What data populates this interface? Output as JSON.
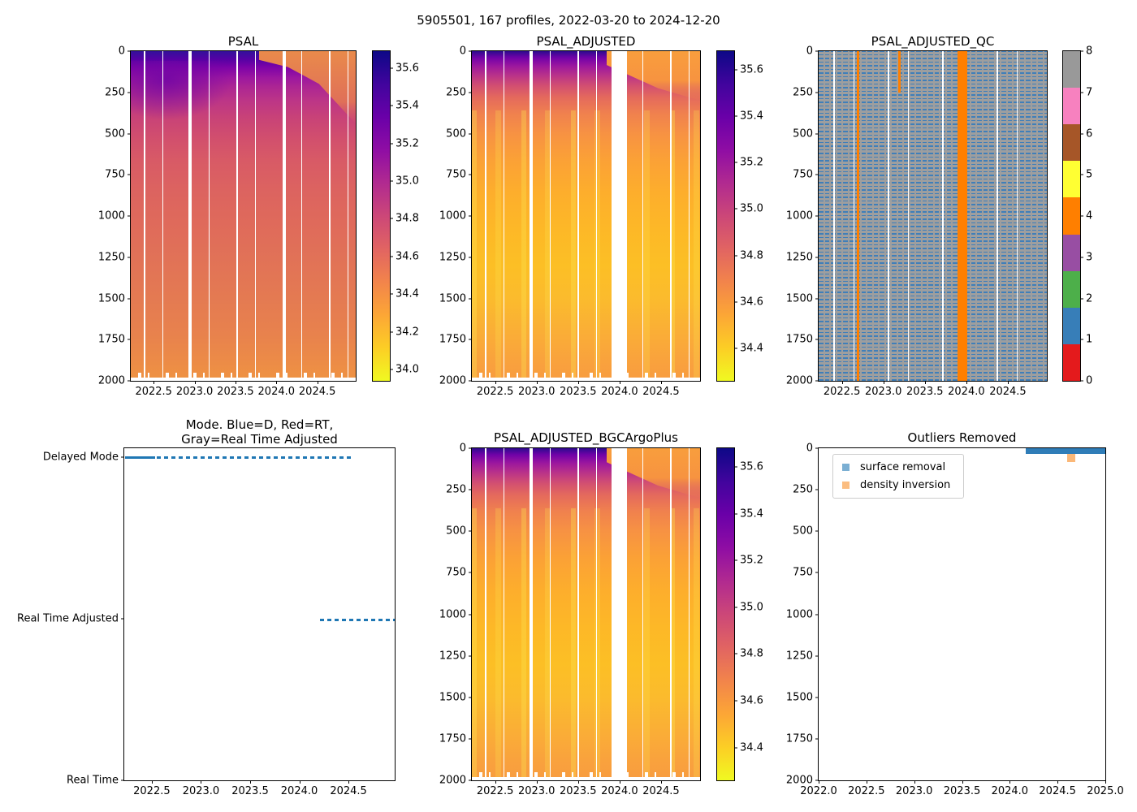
{
  "figure": {
    "suptitle": "5905501, 167 profiles, 2022-03-20 to 2024-12-20",
    "float_id": "5905501",
    "n_profiles": 167,
    "date_range": "2022-03-20 to 2024-12-20"
  },
  "colors": {
    "line_blue": "#1f77b4",
    "qc_flag_orange": "#ff7f00",
    "qc_flag_blue": "#377eb8",
    "qc_flag_gray": "#999999",
    "outlier_band_blue": "#2f7db8",
    "outlier_orange": "#fbb878"
  },
  "axes": {
    "depth": {
      "min": 0,
      "max": 2000,
      "dir": "down",
      "ticks": [
        {
          "v": 0,
          "label": "0"
        },
        {
          "v": 250,
          "label": "250"
        },
        {
          "v": 500,
          "label": "500"
        },
        {
          "v": 750,
          "label": "750"
        },
        {
          "v": 1000,
          "label": "1000"
        },
        {
          "v": 1250,
          "label": "1250"
        },
        {
          "v": 1500,
          "label": "1500"
        },
        {
          "v": 1750,
          "label": "1750"
        },
        {
          "v": 2000,
          "label": "2000"
        }
      ]
    },
    "time_a": {
      "min": 2022.22,
      "max": 2024.97,
      "ticks": [
        {
          "v": 2022.5,
          "label": "2022.5"
        },
        {
          "v": 2023.0,
          "label": "2023.0"
        },
        {
          "v": 2023.5,
          "label": "2023.5"
        },
        {
          "v": 2024.0,
          "label": "2024.0"
        },
        {
          "v": 2024.5,
          "label": "2024.5"
        }
      ]
    },
    "time_b": {
      "min": 2022.0,
      "max": 2025.0,
      "ticks": [
        {
          "v": 2022.0,
          "label": "2022.0"
        },
        {
          "v": 2022.5,
          "label": "2022.5"
        },
        {
          "v": 2023.0,
          "label": "2023.0"
        },
        {
          "v": 2023.5,
          "label": "2023.5"
        },
        {
          "v": 2024.0,
          "label": "2024.0"
        },
        {
          "v": 2024.5,
          "label": "2024.5"
        },
        {
          "v": 2025.0,
          "label": "2025.0"
        }
      ]
    },
    "mode_y": {
      "min": 0,
      "max": 2.055,
      "dir": "up",
      "ticks": [
        {
          "v": 2,
          "label": "Delayed Mode"
        },
        {
          "v": 1,
          "label": "Real Time Adjusted"
        },
        {
          "v": 0,
          "label": "Real Time"
        }
      ]
    },
    "cbar_sal": {
      "min": 33.94,
      "max": 35.69,
      "ticks": [
        {
          "v": 35.6,
          "label": "35.6"
        },
        {
          "v": 35.4,
          "label": "35.4"
        },
        {
          "v": 35.2,
          "label": "35.2"
        },
        {
          "v": 35.0,
          "label": "35.0"
        },
        {
          "v": 34.8,
          "label": "34.8"
        },
        {
          "v": 34.6,
          "label": "34.6"
        },
        {
          "v": 34.4,
          "label": "34.4"
        },
        {
          "v": 34.2,
          "label": "34.2"
        },
        {
          "v": 34.0,
          "label": "34.0"
        }
      ]
    },
    "cbar_adj": {
      "min": 34.26,
      "max": 35.68,
      "ticks": [
        {
          "v": 35.6,
          "label": "35.6"
        },
        {
          "v": 35.4,
          "label": "35.4"
        },
        {
          "v": 35.2,
          "label": "35.2"
        },
        {
          "v": 35.0,
          "label": "35.0"
        },
        {
          "v": 34.8,
          "label": "34.8"
        },
        {
          "v": 34.6,
          "label": "34.6"
        },
        {
          "v": 34.4,
          "label": "34.4"
        }
      ]
    },
    "cbar_qc": {
      "min": 0,
      "max": 8,
      "ticks": [
        {
          "v": 8,
          "label": "8"
        },
        {
          "v": 7,
          "label": "7"
        },
        {
          "v": 6,
          "label": "6"
        },
        {
          "v": 5,
          "label": "5"
        },
        {
          "v": 4,
          "label": "4"
        },
        {
          "v": 3,
          "label": "3"
        },
        {
          "v": 2,
          "label": "2"
        },
        {
          "v": 1,
          "label": "1"
        },
        {
          "v": 0,
          "label": "0"
        }
      ]
    }
  },
  "panels": {
    "psal": {
      "title": "PSAL"
    },
    "psal_adjusted": {
      "title": "PSAL_ADJUSTED"
    },
    "psal_adjusted_qc": {
      "title": "PSAL_ADJUSTED_QC",
      "colorbar_colors_bottom_to_top": [
        "#e41a1c",
        "#377eb8",
        "#4daf4a",
        "#984ea3",
        "#ff7f00",
        "#ffff33",
        "#a65628",
        "#f781bf",
        "#999999"
      ]
    },
    "mode": {
      "title_line1": "Mode. Blue=D, Red=RT,",
      "title_line2": "Gray=Real Time Adjusted"
    },
    "bgc": {
      "title": "PSAL_ADJUSTED_BGCArgoPlus"
    },
    "outliers": {
      "title": "Outliers Removed",
      "legend": [
        {
          "label": "surface removal",
          "color": "#7bafd3"
        },
        {
          "label": "density inversion",
          "color": "#fbbd80"
        }
      ]
    }
  },
  "chart_data": [
    {
      "type": "heatmap",
      "title": "PSAL",
      "x_range": [
        2022.22,
        2024.97
      ],
      "y_range": [
        0,
        2000
      ],
      "y_inverted": true,
      "x_ticks": [
        2022.5,
        2023.0,
        2023.5,
        2024.0,
        2024.5
      ],
      "y_ticks": [
        0,
        250,
        500,
        750,
        1000,
        1250,
        1500,
        1750,
        2000
      ],
      "colormap": "plasma reversed (high salinity = dark navy, low = yellow)",
      "colorbar_range": [
        33.94,
        35.69
      ],
      "colorbar_ticks": [
        34.0,
        34.2,
        34.4,
        34.6,
        34.8,
        35.0,
        35.2,
        35.4,
        35.6
      ],
      "pattern": "salty dark-navy/purple surface layer (~35.3-35.7) in upper ~250 m from 2022.3 to ~2023.8, shoaling and replaced by orange (~34.5) fresher surface after 2024; interior grades from magenta ~35.0 at 500 m to salmon ~34.4-34.6 below 1000 m; many thin white vertical gaps (missing profiles); ragged white data cutoff near 2000 m"
    },
    {
      "type": "heatmap",
      "title": "PSAL_ADJUSTED",
      "x_range": [
        2022.22,
        2024.97
      ],
      "y_range": [
        0,
        2000
      ],
      "y_inverted": true,
      "colormap": "plasma reversed",
      "colorbar_range": [
        34.26,
        35.68
      ],
      "colorbar_ticks": [
        34.4,
        34.6,
        34.8,
        35.0,
        35.2,
        35.4,
        35.6
      ],
      "pattern": "same field as PSAL but rescaled: dark surface band confined to upper ~10%; interior mostly orange with yellow streaks (~34.4-34.7) between 750-1750 m; wide white data gap ~2023.95-2024.1; thin white profile gaps; ragged cutoff near 2000 m"
    },
    {
      "type": "heatmap",
      "title": "PSAL_ADJUSTED_QC",
      "x_range": [
        2022.22,
        2024.97
      ],
      "y_range": [
        0,
        2000
      ],
      "y_inverted": true,
      "flag_values": [
        0,
        1,
        2,
        3,
        4,
        5,
        6,
        7,
        8
      ],
      "flag_colors": {
        "0-1": "#e41a1c",
        "1-2": "#377eb8",
        "2-3": "#4daf4a",
        "3-4": "#984ea3",
        "4-5": "#ff7f00",
        "5-6": "#ffff33",
        "6-7": "#a65628",
        "7-8": "#f781bf",
        "8+": "#999999"
      },
      "pattern": "speckled mix of flag 8 (gray) and flag 1 (blue) horizontal dashes at all depths; vertical flag-4 (orange) profiles: narrow full-depth stripe near 2022.65, short stripe 0-250 m near 2023.1, and a wide full-depth band ~2023.9-2024.05; thin white gaps for missing profiles"
    },
    {
      "type": "scatter",
      "title": "Mode. Blue=D, Red=RT, Gray=Real Time Adjusted",
      "x_range": [
        2022.22,
        2024.97
      ],
      "y_categories": [
        "Real Time",
        "Real Time Adjusted",
        "Delayed Mode"
      ],
      "series": [
        {
          "name": "mode",
          "color": "#1f77b4",
          "segments": [
            {
              "category": "Delayed Mode",
              "x_start": 2022.23,
              "x_end": 2022.53,
              "style": "solid"
            },
            {
              "category": "Delayed Mode",
              "x_start": 2022.55,
              "x_end": 2024.18,
              "style": "dashed"
            },
            {
              "category": "Real Time Adjusted",
              "x_start": 2024.19,
              "x_end": 2024.95,
              "style": "dashed"
            }
          ]
        }
      ]
    },
    {
      "type": "heatmap",
      "title": "PSAL_ADJUSTED_BGCArgoPlus",
      "x_range": [
        2022.22,
        2024.97
      ],
      "y_range": [
        0,
        2000
      ],
      "y_inverted": true,
      "colormap": "plasma reversed",
      "colorbar_range": [
        34.26,
        35.68
      ],
      "colorbar_ticks": [
        34.4,
        34.6,
        34.8,
        35.0,
        35.2,
        35.4,
        35.6
      ],
      "pattern": "visually identical to PSAL_ADJUSTED including the wide white gap ~2023.95-2024.1"
    },
    {
      "type": "scatter",
      "title": "Outliers Removed",
      "x_range": [
        2022.0,
        2025.0
      ],
      "y_range": [
        0,
        2000
      ],
      "y_inverted": true,
      "x_ticks": [
        2022.0,
        2022.5,
        2023.0,
        2023.5,
        2024.0,
        2024.5,
        2025.0
      ],
      "series": [
        {
          "name": "surface removal",
          "color": "#7bafd3",
          "extent": {
            "x": [
              2024.15,
              2025.0
            ],
            "depth": [
              0,
              35
            ]
          },
          "note": "dense band of points along the surface"
        },
        {
          "name": "density inversion",
          "color": "#fbbd80",
          "points": [
            [
              2024.6,
              55
            ]
          ]
        }
      ]
    }
  ]
}
